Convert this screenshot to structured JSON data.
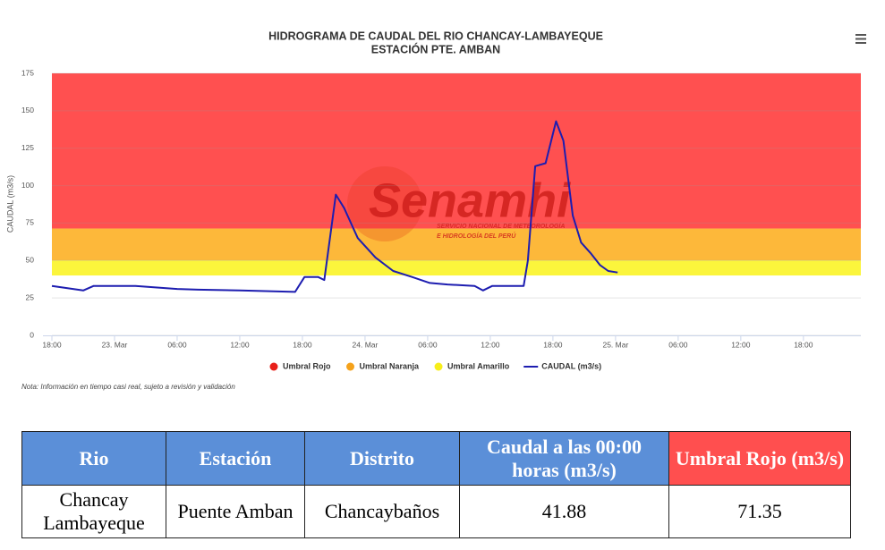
{
  "chart_data": {
    "type": "line",
    "title": "HIDROGRAMA DE CAUDAL DEL RIO CHANCAY-LAMBAYEQUE",
    "subtitle": "ESTACIÓN PTE. AMBAN",
    "y_label": "CAUDAL (m3/s)",
    "note": "Nota: Información en tiempo casi real, sujeto a revisión y validación",
    "watermark": "Senamhi",
    "watermark_sub": [
      "SERVICIO NACIONAL DE METEOROLOGÍA",
      "E HIDROLOGÍA DEL PERÚ"
    ],
    "ylim": [
      0,
      175
    ],
    "yticks": [
      0,
      25,
      50,
      75,
      100,
      125,
      150,
      175
    ],
    "xlim": [
      0,
      77.5
    ],
    "xticks": [
      {
        "value": 0,
        "label": "18:00"
      },
      {
        "value": 6,
        "label": "23. Mar"
      },
      {
        "value": 12,
        "label": "06:00"
      },
      {
        "value": 18,
        "label": "12:00"
      },
      {
        "value": 24,
        "label": "18:00"
      },
      {
        "value": 30,
        "label": "24. Mar"
      },
      {
        "value": 36,
        "label": "06:00"
      },
      {
        "value": 42,
        "label": "12:00"
      },
      {
        "value": 48,
        "label": "18:00"
      },
      {
        "value": 54,
        "label": "25. Mar"
      },
      {
        "value": 60,
        "label": "06:00"
      },
      {
        "value": 66,
        "label": "12:00"
      },
      {
        "value": 72,
        "label": "18:00"
      }
    ],
    "grid": true,
    "thresholds": [
      {
        "name": "Umbral Rojo",
        "color": "#ff5050",
        "legend_color": "#e8201a",
        "from": 71.35,
        "to": 175
      },
      {
        "name": "Umbral Naranja",
        "color": "#fdb83a",
        "legend_color": "#f5a21b",
        "from": 50,
        "to": 71.35
      },
      {
        "name": "Umbral Amarillo",
        "color": "#fbf53c",
        "legend_color": "#f7ee1a",
        "from": 40,
        "to": 50
      }
    ],
    "x": [
      0,
      3,
      4,
      8,
      12,
      14,
      18,
      23.3,
      24.2,
      25.5,
      26.1,
      27.2,
      28,
      29.3,
      31,
      32.7,
      34.5,
      36.2,
      37.9,
      40.5,
      41.3,
      42.2,
      45.2,
      45.6,
      46.3,
      47.3,
      48.3,
      49,
      49.9,
      50.7,
      51.6,
      52.5,
      53.3,
      54.2
    ],
    "series": [
      {
        "name": "CAUDAL (m3/s)",
        "color": "#1d1db0",
        "values": [
          33,
          30,
          33,
          33,
          31,
          30.5,
          30,
          29,
          39,
          39,
          37,
          94,
          85,
          65,
          52,
          43,
          39,
          35,
          34,
          33,
          30,
          33,
          33,
          50,
          113,
          115,
          143,
          130,
          80,
          62,
          55,
          47,
          43,
          42
        ]
      }
    ]
  },
  "table": {
    "header": [
      "Rio",
      "Estación",
      "Distrito",
      "Caudal a las 00:00 horas (m3/s)",
      "Umbral Rojo (m3/s)"
    ],
    "rows": [
      [
        "Chancay Lambayeque",
        "Puente Amban",
        "Chancaybaños",
        "41.88",
        "71.35"
      ]
    ]
  }
}
